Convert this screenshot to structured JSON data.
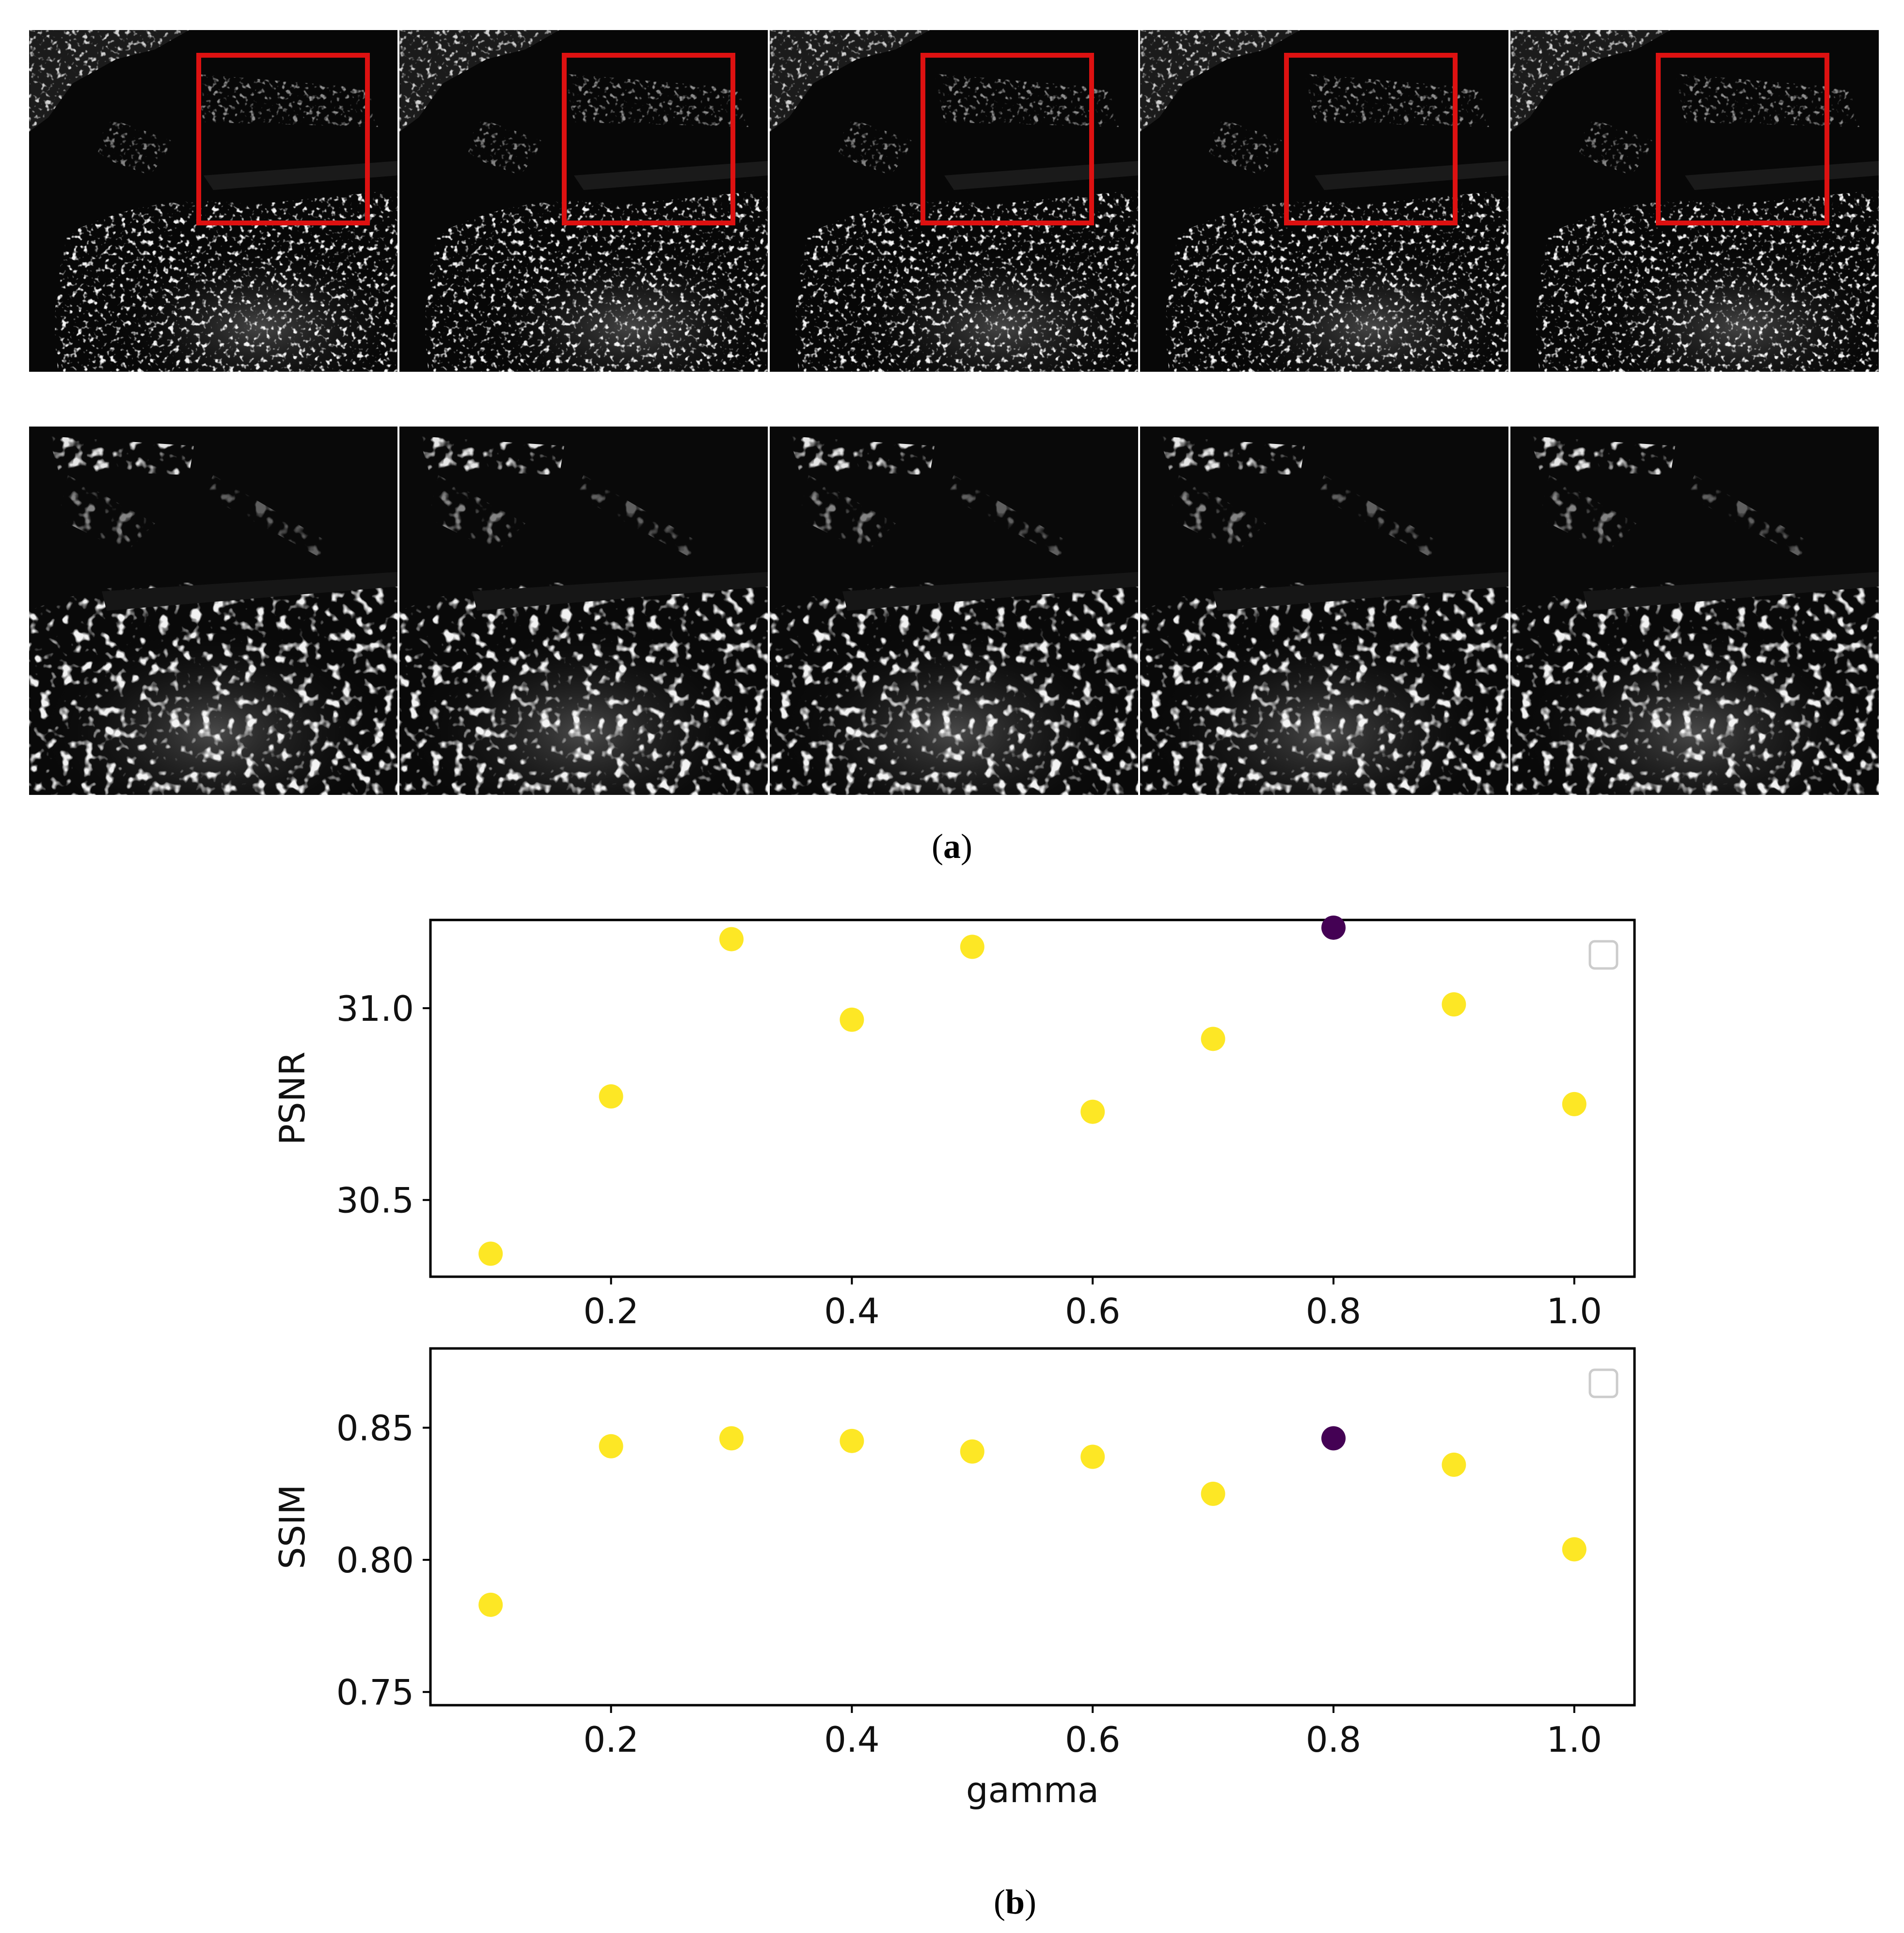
{
  "figure": {
    "caption_a_open": "(",
    "caption_a_letter": "a",
    "caption_a_close": ")",
    "caption_b_open": "(",
    "caption_b_letter": "b",
    "caption_b_close": ")",
    "image_grid": {
      "rows": 2,
      "cols": 5,
      "row1_description": "full SAR scene with red box marking zoom region",
      "row2_description": "zoomed crops of the red box region",
      "highlight_color": "#dd1111"
    }
  },
  "colors": {
    "point_default": "#fde725",
    "point_best": "#440154",
    "axes": "#000000",
    "legend_box": "#cccccc"
  },
  "chart_data": [
    {
      "type": "scatter",
      "title": "",
      "xlabel": "",
      "ylabel": "PSNR",
      "xlim": [
        0.05,
        1.05
      ],
      "ylim": [
        30.3,
        31.23
      ],
      "xticks": [
        0.2,
        0.4,
        0.6,
        0.8,
        1.0
      ],
      "xtick_labels": [
        "0.2",
        "0.4",
        "0.6",
        "0.8",
        "1.0"
      ],
      "yticks": [
        30.5,
        31.0
      ],
      "ytick_labels": [
        "30.5",
        "31.0"
      ],
      "legend": "top-right (empty)",
      "x": [
        0.1,
        0.2,
        0.3,
        0.4,
        0.5,
        0.6,
        0.7,
        0.8,
        0.9,
        1.0
      ],
      "y": [
        30.36,
        30.77,
        31.18,
        30.97,
        31.16,
        30.73,
        30.92,
        31.21,
        31.01,
        30.75
      ],
      "highlight_index": 7
    },
    {
      "type": "scatter",
      "title": "",
      "xlabel": "gamma",
      "ylabel": "SSIM",
      "xlim": [
        0.05,
        1.05
      ],
      "ylim": [
        0.745,
        0.88
      ],
      "xticks": [
        0.2,
        0.4,
        0.6,
        0.8,
        1.0
      ],
      "xtick_labels": [
        "0.2",
        "0.4",
        "0.6",
        "0.8",
        "1.0"
      ],
      "yticks": [
        0.75,
        0.8,
        0.85
      ],
      "ytick_labels": [
        "0.75",
        "0.80",
        "0.85"
      ],
      "legend": "top-right (empty)",
      "x": [
        0.1,
        0.2,
        0.3,
        0.4,
        0.5,
        0.6,
        0.7,
        0.8,
        0.9,
        1.0
      ],
      "y": [
        0.783,
        0.843,
        0.846,
        0.845,
        0.841,
        0.839,
        0.825,
        0.846,
        0.836,
        0.804
      ],
      "highlight_index": 7
    }
  ]
}
